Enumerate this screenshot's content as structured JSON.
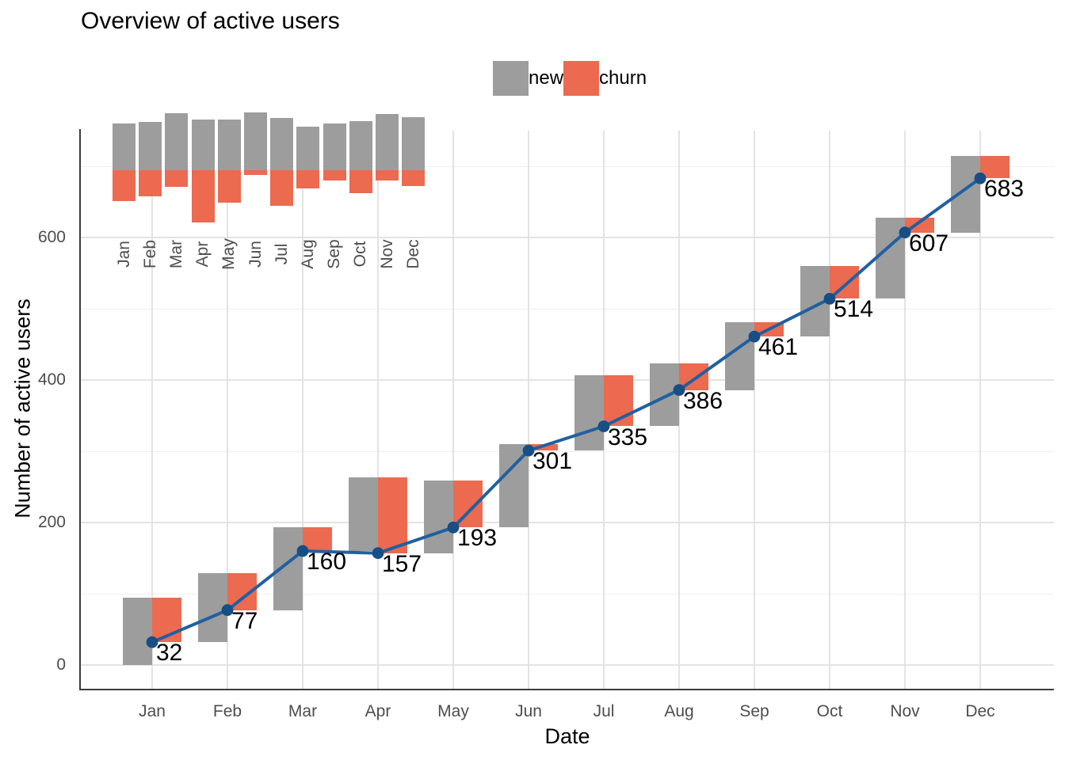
{
  "title": "Overview of active users",
  "legend": {
    "position": "top-center",
    "items": [
      {
        "label": "new",
        "color": "#9D9D9D"
      },
      {
        "label": "churn",
        "color": "#EB6A50"
      }
    ]
  },
  "y_axis": {
    "title": "Number of active users",
    "ticks": [
      0,
      200,
      400,
      600
    ]
  },
  "x_axis": {
    "title": "Date"
  },
  "chart_data": {
    "type": "bar+line",
    "subtype": "waterfall bars with cumulative line and diverging-bar inset",
    "title": "Overview of active users",
    "xlabel": "Date",
    "ylabel": "Number of active users",
    "categories": [
      "Jan",
      "Feb",
      "Mar",
      "Apr",
      "May",
      "Jun",
      "Jul",
      "Aug",
      "Sep",
      "Oct",
      "Nov",
      "Dec"
    ],
    "series": [
      {
        "name": "new",
        "type": "bar",
        "color": "#9D9D9D",
        "values": [
          95,
          97,
          116,
          103,
          102,
          117,
          106,
          88,
          95,
          99,
          114,
          108
        ]
      },
      {
        "name": "churn",
        "type": "bar",
        "color": "#EB6A50",
        "values": [
          63,
          52,
          33,
          106,
          66,
          9,
          72,
          37,
          20,
          46,
          21,
          32
        ]
      }
    ],
    "line_series": {
      "name": "active users",
      "values": [
        32,
        77,
        160,
        157,
        193,
        301,
        335,
        386,
        461,
        514,
        607,
        683
      ],
      "color": "#2160A0",
      "point_color": "#174E85",
      "point_labels_visible": true
    },
    "waterfall_rule": "gray 'new' bar rises from previous cumulative total; adjacent red 'churn' bar falls from that top down to the new cumulative total marked by the line",
    "ylim": [
      0,
      750
    ],
    "yticks": [
      0,
      200,
      400,
      600
    ],
    "minor_yticks": [
      100,
      300,
      500,
      700
    ],
    "grid": true,
    "legend_position": "top",
    "inset_chart": {
      "type": "diverging-bar",
      "description": "per-month new users drawn upward and churned users drawn downward from a shared baseline",
      "categories": [
        "Jan",
        "Feb",
        "Mar",
        "Apr",
        "May",
        "Jun",
        "Jul",
        "Aug",
        "Sep",
        "Oct",
        "Nov",
        "Dec"
      ],
      "up_series": "new",
      "down_series": "churn"
    }
  }
}
